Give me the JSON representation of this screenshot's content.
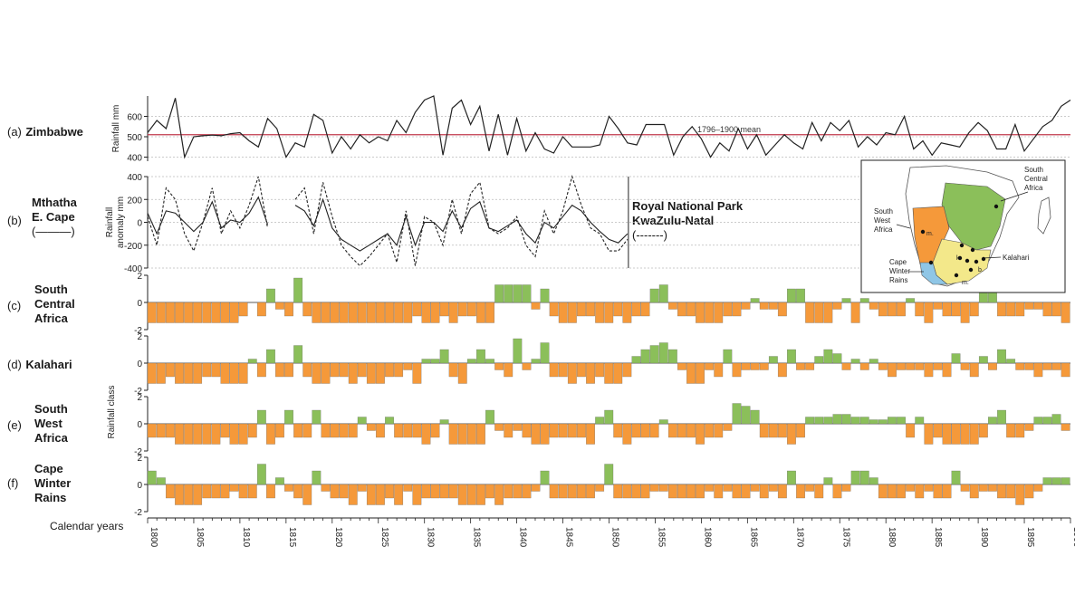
{
  "panels": {
    "a": {
      "id": "(a)",
      "name": "Zimbabwe"
    },
    "b": {
      "id": "(b)",
      "name_lines": [
        "Mthatha",
        "E. Cape"
      ],
      "legend": "(———)",
      "right_lines": [
        "Royal National Park",
        "KwaZulu-Natal"
      ],
      "right_legend": "(-------)"
    },
    "c": {
      "id": "(c)",
      "name_lines": [
        "South",
        "Central",
        "Africa"
      ]
    },
    "d": {
      "id": "(d)",
      "name": "Kalahari"
    },
    "e": {
      "id": "(e)",
      "name_lines": [
        "South",
        "West",
        "Africa"
      ]
    },
    "f": {
      "id": "(f)",
      "name_lines": [
        "Cape",
        "Winter",
        "Rains"
      ]
    }
  },
  "x_axis_label": "Calendar years",
  "map": {
    "labels": {
      "sca": [
        "South",
        "Central",
        "Africa"
      ],
      "swa": [
        "South",
        "West",
        "Africa"
      ],
      "cwr": [
        "Cape",
        "Winter",
        "Rains"
      ],
      "kal": "Kalahari",
      "m1": "m.",
      "m2": "m.",
      "k": "k.",
      "b": "b."
    }
  },
  "colors": {
    "line": "#222222",
    "mean_line": "#c0394b",
    "wet": "#8bbf5a",
    "dry": "#f5993a",
    "grid": "#bbbbbb",
    "map_green": "#8bbf5a",
    "map_orange": "#f5993a",
    "map_yellow": "#f3e88a",
    "map_blue": "#8fc6e6"
  },
  "chart_data": [
    {
      "type": "line",
      "panel": "a",
      "ylabel": "Rainfall mm",
      "ylim": [
        380,
        700
      ],
      "yticks": [
        400,
        500,
        600
      ],
      "xlim": [
        1800,
        1900
      ],
      "mean_label": "1796–1900 mean",
      "mean_value": 510,
      "series": [
        {
          "x": [
            1800,
            1801,
            1802,
            1803,
            1804,
            1805,
            1806,
            1807,
            1808,
            1809,
            1810,
            1811,
            1812,
            1813,
            1814,
            1815,
            1816,
            1817,
            1818,
            1819,
            1820,
            1821,
            1822,
            1823,
            1824,
            1825,
            1826,
            1827,
            1828,
            1829,
            1830,
            1831,
            1832,
            1833,
            1834,
            1835,
            1836,
            1837,
            1838,
            1839,
            1840,
            1841,
            1842,
            1843,
            1844,
            1845,
            1846,
            1847,
            1848,
            1849,
            1850,
            1851,
            1852,
            1853,
            1854,
            1855,
            1856,
            1857,
            1858,
            1859,
            1860,
            1861,
            1862,
            1863,
            1864,
            1865,
            1866,
            1867,
            1868,
            1869,
            1870,
            1871,
            1872,
            1873,
            1874,
            1875,
            1876,
            1877,
            1878,
            1879,
            1880,
            1881,
            1882,
            1883,
            1884,
            1885,
            1886,
            1887,
            1888,
            1889,
            1890,
            1891,
            1892,
            1893,
            1894,
            1895,
            1896,
            1897,
            1898,
            1899,
            1900
          ],
          "values": [
            520,
            580,
            540,
            690,
            400,
            500,
            505,
            508,
            505,
            515,
            520,
            480,
            450,
            590,
            540,
            400,
            470,
            450,
            610,
            580,
            420,
            500,
            440,
            510,
            470,
            500,
            480,
            580,
            520,
            620,
            680,
            700,
            410,
            640,
            680,
            560,
            650,
            430,
            610,
            410,
            590,
            430,
            520,
            440,
            420,
            500,
            450,
            450,
            450,
            460,
            600,
            540,
            470,
            460,
            560,
            560,
            560,
            410,
            500,
            550,
            490,
            400,
            470,
            430,
            540,
            440,
            510,
            410,
            460,
            510,
            470,
            440,
            570,
            480,
            570,
            530,
            580,
            450,
            500,
            460,
            520,
            510,
            600,
            440,
            480,
            410,
            470,
            460,
            450,
            520,
            570,
            530,
            440,
            440,
            560,
            430,
            490,
            550,
            580,
            650,
            680
          ]
        }
      ]
    },
    {
      "type": "line",
      "panel": "b",
      "ylabel": "Rainfall anomaly mm",
      "ylim": [
        -400,
        400
      ],
      "yticks": [
        -400,
        -200,
        0,
        200,
        400
      ],
      "xlim": [
        1800,
        1852
      ],
      "series": [
        {
          "name": "Mthatha E. Cape",
          "x": [
            1800,
            1801,
            1802,
            1803,
            1804,
            1805,
            1806,
            1807,
            1808,
            1809,
            1810,
            1811,
            1812,
            1813,
            null,
            1816,
            1817,
            1818,
            1819,
            1820,
            1821,
            1822,
            1823,
            1824,
            1825,
            1826,
            1827,
            1828,
            1829,
            1830,
            1831,
            1832,
            1833,
            1834,
            1835,
            1836,
            1837,
            1838,
            1839,
            1840,
            1841,
            1842,
            1843,
            1844,
            1845,
            1846,
            1847,
            1848,
            1849,
            1850,
            1851,
            1852
          ],
          "values": [
            80,
            -100,
            100,
            80,
            0,
            -80,
            0,
            180,
            -50,
            20,
            0,
            80,
            220,
            -20,
            null,
            150,
            100,
            -30,
            200,
            -50,
            -150,
            -200,
            -250,
            -200,
            -150,
            -100,
            -200,
            50,
            -200,
            0,
            0,
            -80,
            100,
            -50,
            120,
            180,
            -50,
            -80,
            -30,
            20,
            -100,
            -180,
            0,
            -50,
            50,
            150,
            100,
            0,
            -80,
            -150,
            -180,
            -100
          ]
        },
        {
          "name": "Royal National Park KwaZulu-Natal",
          "x": [
            1800,
            1801,
            1802,
            1803,
            1804,
            1805,
            1806,
            1807,
            1808,
            1809,
            1810,
            1811,
            1812,
            1813,
            null,
            1816,
            1817,
            1818,
            1819,
            1820,
            1821,
            1822,
            1823,
            1824,
            1825,
            1826,
            1827,
            1828,
            1829,
            1830,
            1831,
            1832,
            1833,
            1834,
            1835,
            1836,
            1837,
            1838,
            1839,
            1840,
            1841,
            1842,
            1843,
            1844,
            1845,
            1846,
            1847,
            1848,
            1849,
            1850,
            1851,
            1852
          ],
          "values": [
            50,
            -200,
            300,
            200,
            -100,
            -250,
            0,
            300,
            -100,
            100,
            -50,
            150,
            400,
            -50,
            null,
            200,
            300,
            -100,
            350,
            50,
            -200,
            -300,
            -380,
            -300,
            -200,
            -100,
            -350,
            100,
            -380,
            50,
            0,
            -200,
            200,
            -100,
            250,
            350,
            -50,
            -100,
            -50,
            50,
            -200,
            -300,
            100,
            -100,
            100,
            400,
            150,
            -50,
            -100,
            -250,
            -250,
            -150
          ]
        }
      ]
    },
    {
      "type": "bar",
      "panel": "c",
      "ylabel": "Rainfall class",
      "ylim": [
        -2,
        2
      ],
      "yticks": [
        -2,
        0,
        2
      ],
      "xlim": [
        1800,
        1900
      ],
      "x_start": 1800,
      "values": [
        -1.5,
        -1.5,
        -1.5,
        -1.5,
        -1.5,
        -1.5,
        -1.5,
        -1.5,
        -1.5,
        -1.5,
        -1,
        0,
        -1,
        1,
        -0.5,
        -1,
        1.8,
        -1,
        -1.5,
        -1.5,
        -1.5,
        -1.5,
        -1.5,
        -1.5,
        -1.5,
        -1.5,
        -1.5,
        -1.5,
        -1.5,
        -1,
        -1.5,
        -1.5,
        -1,
        -1.5,
        -1,
        -1,
        -1.5,
        -1.5,
        1.3,
        1.3,
        1.3,
        1.3,
        -0.5,
        1,
        -1,
        -1.5,
        -1.5,
        -1,
        -1,
        -1.5,
        -1.5,
        -1,
        -1.5,
        -1,
        -1,
        1,
        1.3,
        -0.5,
        -1,
        -1,
        -1.5,
        -1.5,
        -1.5,
        -1,
        -1,
        -0.5,
        0.3,
        -0.5,
        -0.5,
        -1,
        1,
        1,
        -1.5,
        -1.5,
        -1.5,
        -0.5,
        0.3,
        -1.5,
        0.3,
        -0.5,
        -1,
        -1,
        -1,
        0.3,
        -1,
        -1.5,
        -0.5,
        -1,
        -1,
        -1.5,
        -1,
        0.7,
        1,
        -1,
        -1,
        -1,
        -0.5,
        -0.5,
        -1,
        -1,
        -1.5
      ]
    },
    {
      "type": "bar",
      "panel": "d",
      "ylabel": "Rainfall class",
      "ylim": [
        -2,
        2
      ],
      "yticks": [
        -2,
        0,
        2
      ],
      "xlim": [
        1800,
        1900
      ],
      "x_start": 1800,
      "values": [
        -1.5,
        -1.5,
        -1,
        -1.5,
        -1.5,
        -1.5,
        -1,
        -1,
        -1.5,
        -1.5,
        -1.5,
        0.3,
        -1,
        1,
        -1,
        -1,
        1.3,
        -1,
        -1.5,
        -1.5,
        -1,
        -1,
        -1.5,
        -1,
        -1.5,
        -1.5,
        -1,
        -1,
        -0.5,
        -1.5,
        0.3,
        0.3,
        1,
        -1,
        -1.5,
        0.3,
        1,
        0.3,
        -0.5,
        -1,
        1.8,
        -0.5,
        0.3,
        1.5,
        -1,
        -1,
        -1.5,
        -1,
        -1.5,
        -1,
        -1.5,
        -1.5,
        -1,
        0.5,
        1,
        1.3,
        1.5,
        1,
        -0.5,
        -1.5,
        -1.5,
        -0.5,
        -1,
        1,
        -1,
        -0.5,
        -0.5,
        -0.5,
        0.5,
        -1,
        1,
        -0.5,
        -0.5,
        0.5,
        1,
        0.7,
        -0.5,
        0.3,
        -0.5,
        0.3,
        -0.5,
        -1,
        -0.5,
        -0.5,
        -0.5,
        -1,
        -0.5,
        -1,
        0.7,
        -0.5,
        -1,
        0.5,
        -0.5,
        1,
        0.3,
        -0.5,
        -0.5,
        -1,
        -0.5,
        -0.5,
        -1
      ]
    },
    {
      "type": "bar",
      "panel": "e",
      "ylabel": "Rainfall class",
      "ylim": [
        -2,
        2
      ],
      "yticks": [
        -2,
        0,
        2
      ],
      "xlim": [
        1800,
        1900
      ],
      "x_start": 1800,
      "values": [
        -1,
        -1,
        -1,
        -1.5,
        -1.5,
        -1.5,
        -1.5,
        -1.5,
        -1,
        -1.5,
        -1.5,
        -1,
        1,
        -1.5,
        -1,
        1,
        -1,
        -1,
        1,
        -1,
        -1,
        -1,
        -1,
        0.5,
        -0.5,
        -1,
        0.5,
        -1,
        -1,
        -1,
        -1.5,
        -1,
        0.3,
        -1.5,
        -1.5,
        -1.5,
        -1.5,
        1,
        -0.5,
        -1,
        -0.5,
        -1,
        -1.5,
        -1.5,
        -1,
        -1,
        -1,
        -1,
        -1.5,
        0.5,
        1,
        -1,
        -1.5,
        -1,
        -1,
        -1,
        0.3,
        -1,
        -1,
        -1,
        -1.5,
        -1,
        -1,
        -0.5,
        1.5,
        1.3,
        1,
        -1,
        -1,
        -1,
        -1.5,
        -1,
        0.5,
        0.5,
        0.5,
        0.7,
        0.7,
        0.5,
        0.5,
        0.3,
        0.3,
        0.5,
        0.5,
        -1,
        0.5,
        -1.5,
        -1,
        -1.5,
        -1.5,
        -1.5,
        -1.5,
        -1,
        0.5,
        1,
        -1,
        -1,
        -0.5,
        0.5,
        0.5,
        0.7,
        -0.5
      ]
    },
    {
      "type": "bar",
      "panel": "f",
      "ylabel": "Rainfall class",
      "ylim": [
        -2,
        2
      ],
      "yticks": [
        -2,
        0,
        2
      ],
      "xlim": [
        1800,
        1900
      ],
      "x_start": 1800,
      "values": [
        1,
        0.5,
        -1,
        -1.5,
        -1.5,
        -1.5,
        -1,
        -1,
        -1,
        -0.5,
        -1,
        -1,
        1.5,
        -1,
        0.5,
        -0.5,
        -1,
        -1.5,
        1,
        -0.5,
        -1,
        -1,
        -1.5,
        -0.5,
        -1.5,
        -1.5,
        -1,
        -1.5,
        -0.5,
        -1.5,
        -1,
        -1,
        -1,
        -1,
        -1.5,
        -1.5,
        -1.5,
        -1,
        -1.5,
        -1,
        -1,
        -1,
        -0.5,
        1,
        -1,
        -1,
        -1,
        -1,
        -1,
        -0.5,
        1.5,
        -1,
        -1,
        -1,
        -1,
        -0.5,
        -0.5,
        -1,
        -1,
        -1,
        -1,
        -0.5,
        -1,
        -0.5,
        -1,
        -1,
        -0.5,
        -1,
        -0.5,
        -1,
        1,
        -1,
        -0.5,
        -1,
        0.5,
        -1,
        -0.5,
        1,
        1,
        0.5,
        -1,
        -1,
        -1,
        -0.5,
        -1,
        -0.5,
        -1,
        -1,
        1,
        -0.5,
        -1,
        -0.5,
        -0.5,
        -1,
        -1,
        -1.5,
        -1,
        -0.5,
        0.5,
        0.5,
        0.5
      ]
    }
  ]
}
